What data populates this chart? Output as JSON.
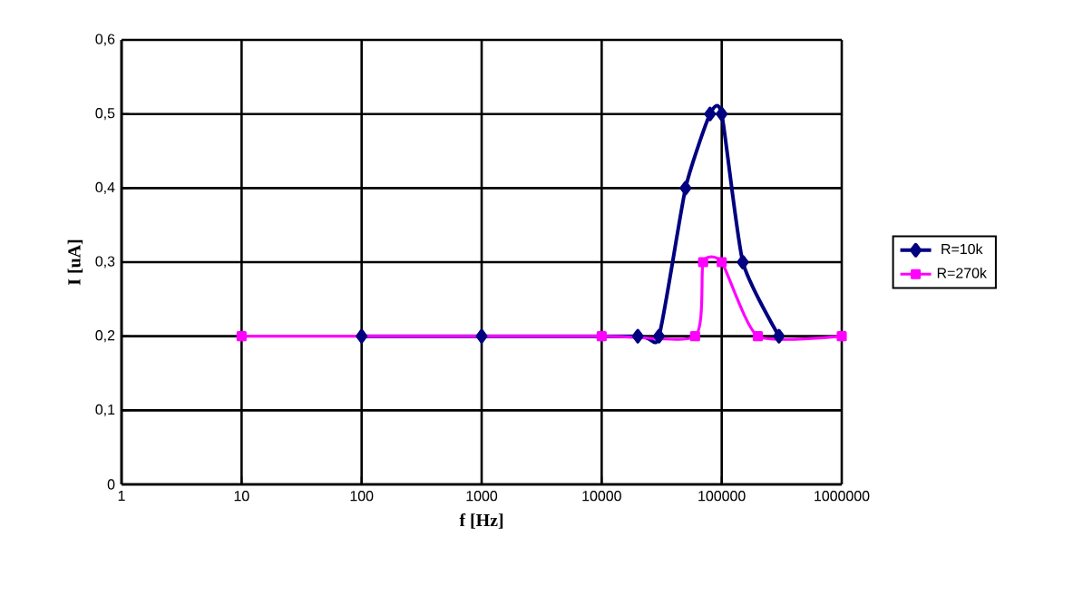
{
  "chart_data": {
    "type": "line",
    "xlabel": "f [Hz]",
    "ylabel": "I [uA]",
    "log": "x",
    "xlim": [
      1,
      1000000
    ],
    "xticks": [
      1,
      10,
      100,
      1000,
      10000,
      100000,
      1000000
    ],
    "ylim": [
      0,
      0.6
    ],
    "yticks": [
      {
        "value": 0,
        "label": "0"
      },
      {
        "value": 0.1,
        "label": "0,1"
      },
      {
        "value": 0.2,
        "label": "0,2"
      },
      {
        "value": 0.3,
        "label": "0,3"
      },
      {
        "value": 0.4,
        "label": "0,4"
      },
      {
        "value": 0.5,
        "label": "0,5"
      },
      {
        "value": 0.6,
        "label": "0,6"
      }
    ],
    "grid": true,
    "legend": "right",
    "series": [
      {
        "name": "R=10k",
        "color": "#000080",
        "marker": "diamond",
        "x": [
          100,
          1000,
          10000,
          20000,
          30000,
          50000,
          80000,
          100000,
          150000,
          200000,
          300000
        ],
        "values": [
          0.2,
          0.2,
          null,
          0.2,
          0.2,
          0.4,
          0.5,
          0.5,
          0.3,
          null,
          0.2
        ]
      },
      {
        "name": "R=270k",
        "color": "#ff00ff",
        "marker": "square",
        "x": [
          10,
          10000,
          60000,
          70000,
          100000,
          200000,
          1000000
        ],
        "values": [
          0.2,
          0.2,
          0.2,
          0.3,
          0.3,
          0.2,
          0.2
        ]
      }
    ]
  }
}
